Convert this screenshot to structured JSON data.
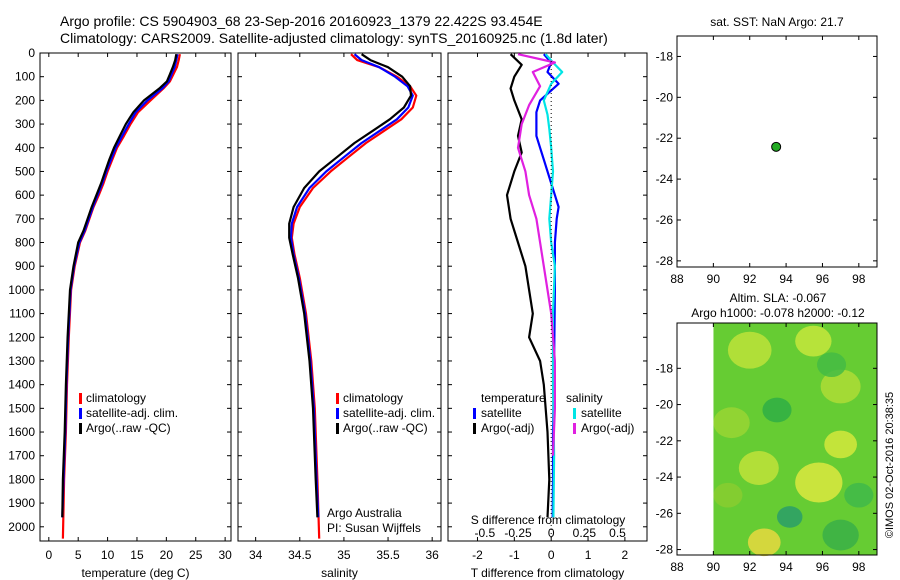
{
  "header": {
    "line1": "Argo profile: CS 5904903_68 23-Sep-2016 20160923_1379 22.422S 93.454E",
    "line2": "Climatology: CARS2009. Satellite-adjusted climatology: synTS_20160925.nc (1.8d later)"
  },
  "credit": "©IMOS 02-Oct-2016 20:38:35",
  "colors": {
    "climatology": "#ff0000",
    "satellite": "#0000ff",
    "argo": "#000000",
    "sat_sal": "#00e5e5",
    "argo_sal": "#e020e0",
    "marker": "#22aa22"
  },
  "chart_data": [
    {
      "id": "temp",
      "type": "line",
      "xlabel": "temperature (deg C)",
      "xlim": [
        -1.5,
        31
      ],
      "xticks": [
        "0",
        "5",
        "10",
        "15",
        "20",
        "25",
        "30"
      ],
      "ylim": [
        0,
        2060
      ],
      "yticks": [
        "0",
        "100",
        "200",
        "300",
        "400",
        "500",
        "600",
        "700",
        "800",
        "900",
        "1000",
        "1100",
        "1200",
        "1300",
        "1400",
        "1500",
        "1600",
        "1700",
        "1800",
        "1900",
        "2000"
      ],
      "legend": [
        "climatology",
        "satellite-adj. clim.",
        "Argo(..raw -QC)"
      ],
      "series": [
        {
          "name": "climatology",
          "color": "#ff0000",
          "x": [
            22.3,
            22.1,
            21.8,
            21.2,
            20.6,
            19.5,
            17.3,
            15.2,
            13.9,
            12.8,
            11.6,
            10.8,
            10.0,
            9.3,
            8.5,
            7.6,
            6.9,
            6.2,
            5.3,
            4.4,
            3.8,
            3.4,
            3.1,
            2.9,
            2.6,
            2.4
          ],
          "y": [
            5,
            30,
            60,
            90,
            120,
            150,
            200,
            250,
            300,
            350,
            400,
            450,
            500,
            550,
            600,
            650,
            700,
            750,
            800,
            900,
            1000,
            1200,
            1400,
            1600,
            1800,
            2050
          ]
        },
        {
          "name": "satellite-adj. clim.",
          "color": "#0000ff",
          "x": [
            21.9,
            21.7,
            21.4,
            20.9,
            20.4,
            19.3,
            16.8,
            14.8,
            13.6,
            12.5,
            11.4,
            10.6,
            9.8,
            9.1,
            8.3,
            7.5,
            6.8,
            6.1,
            5.2,
            4.3,
            3.7,
            3.3,
            3.0,
            2.8,
            2.5,
            2.3
          ],
          "y": [
            5,
            30,
            60,
            90,
            120,
            150,
            200,
            250,
            300,
            350,
            400,
            450,
            500,
            550,
            600,
            650,
            700,
            750,
            800,
            900,
            1000,
            1200,
            1400,
            1600,
            1800,
            1960
          ]
        },
        {
          "name": "Argo(..raw -QC)",
          "color": "#000000",
          "x": [
            21.7,
            21.5,
            21.1,
            20.6,
            20.1,
            18.8,
            16.2,
            14.4,
            13.1,
            12.1,
            11.1,
            10.3,
            9.6,
            8.9,
            8.1,
            7.3,
            6.6,
            5.9,
            5.0,
            4.2,
            3.6,
            3.2,
            2.9,
            2.7,
            2.4,
            2.3
          ],
          "y": [
            5,
            30,
            60,
            90,
            120,
            150,
            200,
            250,
            300,
            350,
            400,
            450,
            500,
            550,
            600,
            650,
            700,
            750,
            800,
            900,
            1000,
            1200,
            1400,
            1600,
            1800,
            1960
          ]
        }
      ]
    },
    {
      "id": "sal",
      "type": "line",
      "xlabel": "salinity",
      "xlim": [
        33.8,
        36.1
      ],
      "xticks": [
        "34",
        "34.5",
        "35",
        "35.5",
        "36"
      ],
      "ylim": [
        0,
        2060
      ],
      "legend": [
        "climatology",
        "satellite-adj. clim.",
        "Argo(..raw -QC)"
      ],
      "annotation": [
        "Argo Australia",
        "PI: Susan Wijffels"
      ],
      "series": [
        {
          "name": "climatology",
          "color": "#ff0000",
          "x": [
            35.08,
            35.15,
            35.4,
            35.6,
            35.75,
            35.82,
            35.78,
            35.65,
            35.45,
            35.25,
            35.05,
            34.85,
            34.65,
            34.5,
            34.43,
            34.41,
            34.44,
            34.5,
            34.57,
            34.63,
            34.67,
            34.7,
            34.72
          ],
          "y": [
            5,
            30,
            60,
            100,
            140,
            180,
            230,
            280,
            330,
            380,
            440,
            500,
            570,
            650,
            720,
            780,
            850,
            950,
            1100,
            1300,
            1500,
            1800,
            2050
          ]
        },
        {
          "name": "satellite-adj. clim.",
          "color": "#0000ff",
          "x": [
            35.12,
            35.2,
            35.4,
            35.58,
            35.72,
            35.78,
            35.73,
            35.6,
            35.4,
            35.2,
            35.0,
            34.8,
            34.61,
            34.47,
            34.41,
            34.4,
            34.43,
            34.49,
            34.56,
            34.62,
            34.66,
            34.69,
            34.71
          ],
          "y": [
            5,
            30,
            60,
            100,
            140,
            180,
            230,
            280,
            330,
            380,
            440,
            500,
            570,
            650,
            720,
            780,
            850,
            950,
            1100,
            1300,
            1500,
            1800,
            1960
          ]
        },
        {
          "name": "Argo(..raw -QC)",
          "color": "#000000",
          "x": [
            35.2,
            35.3,
            35.5,
            35.66,
            35.75,
            35.76,
            35.68,
            35.52,
            35.32,
            35.12,
            34.92,
            34.72,
            34.55,
            34.43,
            34.38,
            34.38,
            34.42,
            34.48,
            34.55,
            34.61,
            34.65,
            34.68,
            34.7
          ],
          "y": [
            5,
            30,
            60,
            100,
            140,
            180,
            230,
            280,
            330,
            380,
            440,
            500,
            570,
            650,
            720,
            780,
            850,
            950,
            1100,
            1300,
            1500,
            1800,
            1960
          ]
        }
      ]
    },
    {
      "id": "diff",
      "type": "line",
      "xlabel": "T difference from climatology",
      "xlabel2": "S difference from climatology",
      "xlim": [
        -2.8,
        2.6
      ],
      "xticks": [
        "-2",
        "-1",
        "0",
        "1",
        "2"
      ],
      "xticks2": [
        "-0.5",
        "-0.25",
        "0",
        "0.25",
        "0.5"
      ],
      "ylim": [
        0,
        2060
      ],
      "legend_temperature": {
        "heading": "temperature",
        "items": [
          "satellite",
          "Argo(-adj)"
        ]
      },
      "legend_salinity": {
        "heading": "salinity",
        "items": [
          "satellite",
          "Argo(-adj)"
        ]
      },
      "series": [
        {
          "name": "temperature satellite",
          "color": "#0000ff",
          "x": [
            -0.2,
            0.0,
            -0.1,
            0.2,
            -0.3,
            -0.4,
            -0.4,
            -0.4,
            -0.3,
            -0.2,
            -0.1,
            0.0,
            0.1,
            0.2,
            0.15,
            0.1,
            0.1,
            0.08,
            0.05,
            0.05,
            0.04
          ],
          "y": [
            5,
            40,
            80,
            130,
            200,
            250,
            300,
            350,
            400,
            450,
            500,
            550,
            600,
            650,
            700,
            800,
            1000,
            1300,
            1600,
            1800,
            1960
          ]
        },
        {
          "name": "temperature Argo(-adj)",
          "color": "#000000",
          "x": [
            -1.1,
            -0.8,
            -1.0,
            -1.1,
            -1.0,
            -0.8,
            -0.9,
            -0.8,
            -1.0,
            -1.2,
            -1.1,
            -0.9,
            -0.7,
            -0.6,
            -0.5,
            -0.6,
            -0.3,
            -0.2,
            -0.1,
            -0.05,
            -0.1
          ],
          "y": [
            5,
            50,
            100,
            150,
            200,
            280,
            350,
            420,
            500,
            600,
            700,
            800,
            900,
            1000,
            1100,
            1200,
            1300,
            1400,
            1600,
            1800,
            1960
          ]
        },
        {
          "name": "salinity satellite",
          "color": "#00e5e5",
          "x": [
            -0.15,
            0.05,
            0.3,
            0.0,
            -0.2,
            -0.1,
            -0.05,
            0.0,
            0.05,
            0.0,
            -0.05,
            0.0,
            0.1,
            0.05,
            0.05,
            0.08,
            0.06
          ],
          "y": [
            5,
            40,
            80,
            130,
            200,
            260,
            320,
            400,
            500,
            600,
            700,
            800,
            900,
            1100,
            1400,
            1700,
            1960
          ]
        },
        {
          "name": "salinity Argo(-adj)",
          "color": "#e020e0",
          "x": [
            -0.9,
            0.1,
            -0.5,
            -0.3,
            -0.6,
            -0.8,
            -0.9,
            -0.7,
            -0.6,
            -0.4,
            -0.3,
            -0.2,
            0.0,
            0.1,
            0.1,
            0.05
          ],
          "y": [
            5,
            40,
            80,
            140,
            220,
            300,
            400,
            500,
            600,
            700,
            800,
            900,
            1100,
            1300,
            1500,
            1700
          ]
        }
      ]
    },
    {
      "id": "map_sst",
      "type": "scatter",
      "title": "sat. SST: NaN Argo: 21.7",
      "xlim": [
        88,
        99
      ],
      "ylim": [
        -28.3,
        -17
      ],
      "xticks": [
        "88",
        "90",
        "92",
        "94",
        "96",
        "98"
      ],
      "yticks": [
        "-18",
        "-20",
        "-22",
        "-24",
        "-26",
        "-28"
      ],
      "points": [
        {
          "x": 93.454,
          "y": -22.422
        }
      ]
    },
    {
      "id": "map_sla",
      "type": "heatmap",
      "title": "Altim. SLA: -0.067",
      "subtitle": "Argo h1000: -0.078 h2000: -0.12",
      "xlim": [
        88,
        99
      ],
      "ylim": [
        -28.3,
        -15.5
      ],
      "xticks": [
        "88",
        "90",
        "92",
        "94",
        "96",
        "98"
      ],
      "yticks": [
        "-18",
        "-20",
        "-22",
        "-24",
        "-26",
        "-28"
      ],
      "point": {
        "x": 93.454,
        "y": -22.422
      }
    }
  ]
}
